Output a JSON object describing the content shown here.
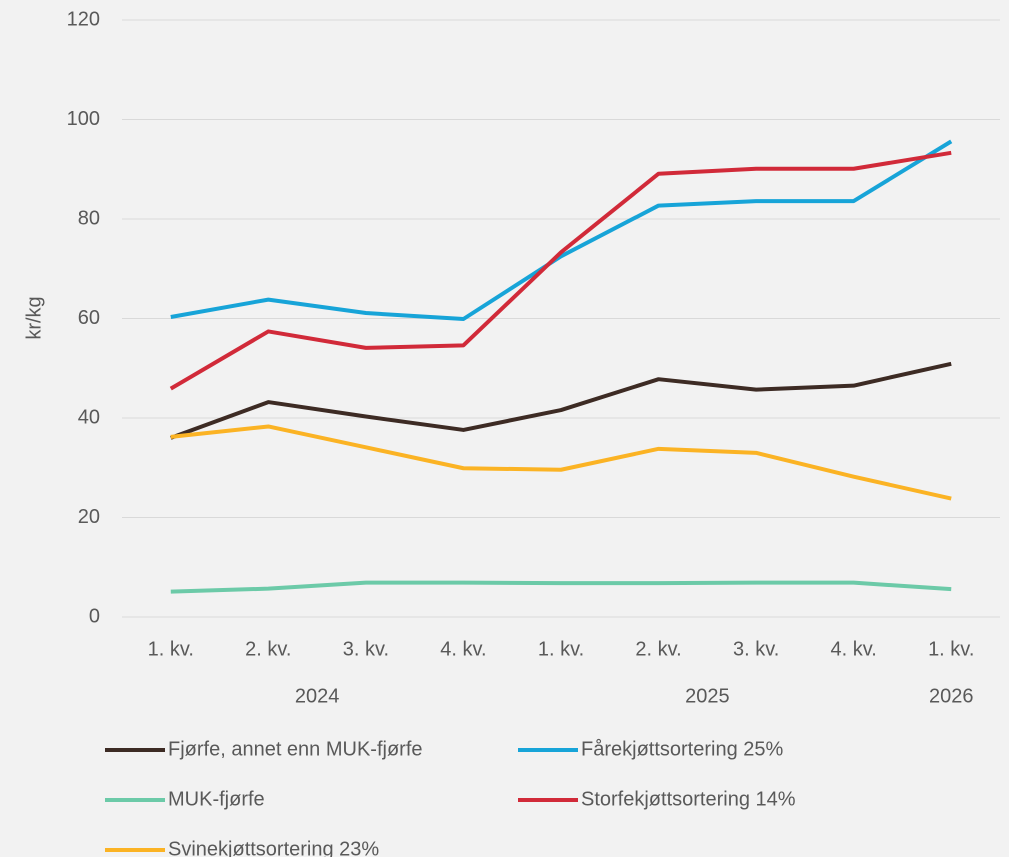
{
  "chart_data": {
    "type": "line",
    "y_label": "kr/kg",
    "categories": [
      "1. kv.",
      "2. kv.",
      "3. kv.",
      "4. kv.",
      "1. kv.",
      "2. kv.",
      "3. kv.",
      "4. kv.",
      "1. kv."
    ],
    "category_groups": [
      "2024",
      null,
      null,
      null,
      "2025",
      null,
      null,
      null,
      "2026"
    ],
    "series": [
      {
        "name": "Fjørfe, annet enn MUK-fjørfe",
        "color": "#3d2b24",
        "values": [
          36,
          43.2,
          40.3,
          37.6,
          41.6,
          47.8,
          45.7,
          46.5,
          50.9
        ]
      },
      {
        "name": "Fårekjøttsortering 25%",
        "color": "#17a4d8",
        "values": [
          60.3,
          63.8,
          61.1,
          59.9,
          72.5,
          82.7,
          83.6,
          83.6,
          95.6
        ]
      },
      {
        "name": "MUK-fjørfe",
        "color": "#6ccaa8",
        "values": [
          5.1,
          5.7,
          6.9,
          6.9,
          6.8,
          6.8,
          6.9,
          6.9,
          5.6
        ]
      },
      {
        "name": "Storfekjøttsortering 14%",
        "color": "#d12a39",
        "values": [
          45.9,
          57.4,
          54.1,
          54.6,
          73.3,
          89.1,
          90.1,
          90.1,
          93.3
        ]
      },
      {
        "name": "Svinekjøttsortering 23%",
        "color": "#fbb324",
        "values": [
          36.2,
          38.3,
          34.1,
          29.9,
          29.6,
          33.8,
          33,
          28.2,
          23.8
        ]
      }
    ],
    "ylim": [
      0,
      120
    ],
    "yticks": [
      0,
      20,
      40,
      60,
      80,
      100,
      120
    ],
    "grid": true
  }
}
